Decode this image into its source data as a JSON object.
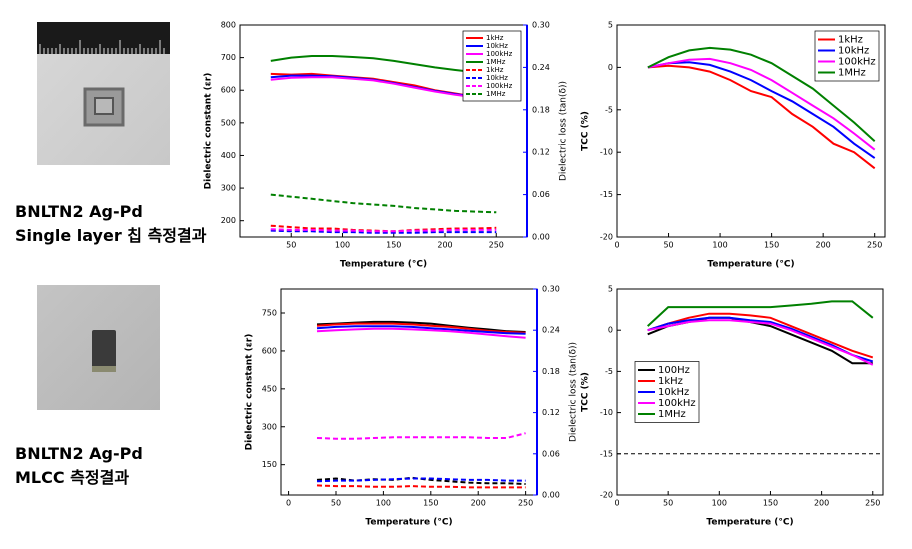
{
  "captions": [
    [
      "BNLTN2 Ag-Pd",
      "Single layer 칩 측정결과"
    ],
    [
      "BNLTN2 Ag-Pd",
      "MLCC 측정결과"
    ]
  ],
  "chart_data": [
    {
      "type": "line",
      "xlabel": "Temperature (°C)",
      "ylabel": "Dielectric constant (εr)",
      "y2label": "Dielectric loss (tan(δ))",
      "y2color": "#0000ff",
      "x": [
        30,
        50,
        70,
        90,
        110,
        130,
        150,
        170,
        190,
        210,
        230,
        250
      ],
      "xlim": [
        0,
        280
      ],
      "xticks": [
        50,
        100,
        150,
        200,
        250
      ],
      "ylim": [
        150,
        800
      ],
      "yticks": [
        200,
        300,
        400,
        500,
        600,
        700,
        800
      ],
      "y2lim": [
        0,
        0.3
      ],
      "y2ticks": [
        {
          "value": 0,
          "label": "0.00"
        },
        0.06,
        0.12,
        0.18,
        0.24,
        {
          "value": 0.3,
          "label": "0.30"
        }
      ],
      "legend": "upper right",
      "series": [
        {
          "name": "1kHz",
          "color": "#ff0000",
          "values": [
            650,
            648,
            650,
            645,
            640,
            635,
            625,
            615,
            600,
            590,
            580,
            575
          ]
        },
        {
          "name": "10kHz",
          "color": "#0000ff",
          "values": [
            640,
            645,
            645,
            643,
            638,
            632,
            622,
            610,
            598,
            588,
            580,
            578
          ]
        },
        {
          "name": "100kHz",
          "color": "#ff00ff",
          "values": [
            632,
            638,
            640,
            640,
            635,
            630,
            620,
            608,
            596,
            586,
            578,
            575
          ]
        },
        {
          "name": "1MHz",
          "color": "#008000",
          "values": [
            690,
            700,
            705,
            705,
            702,
            698,
            690,
            680,
            670,
            662,
            655,
            650
          ]
        },
        {
          "name": "1kHz",
          "color": "#ff0000",
          "axis": "y2",
          "dash": true,
          "values": [
            0.016,
            0.014,
            0.012,
            0.012,
            0.01,
            0.009,
            0.008,
            0.01,
            0.011,
            0.012,
            0.012,
            0.013
          ]
        },
        {
          "name": "10kHz",
          "color": "#0000ff",
          "axis": "y2",
          "dash": true,
          "values": [
            0.009,
            0.008,
            0.008,
            0.007,
            0.007,
            0.006,
            0.006,
            0.006,
            0.007,
            0.007,
            0.007,
            0.007
          ]
        },
        {
          "name": "100kHz",
          "color": "#ff00ff",
          "axis": "y2",
          "dash": true,
          "values": [
            0.011,
            0.01,
            0.01,
            0.009,
            0.009,
            0.008,
            0.008,
            0.009,
            0.009,
            0.01,
            0.01,
            0.01
          ]
        },
        {
          "name": "1MHz",
          "color": "#008000",
          "axis": "y2",
          "dash": true,
          "values": [
            0.06,
            0.057,
            0.054,
            0.051,
            0.048,
            0.046,
            0.044,
            0.041,
            0.039,
            0.037,
            0.036,
            0.035
          ]
        }
      ]
    },
    {
      "type": "line",
      "xlabel": "Temperature (°C)",
      "ylabel": "TCC (%)",
      "x": [
        30,
        50,
        70,
        90,
        110,
        130,
        150,
        170,
        190,
        210,
        230,
        250
      ],
      "xlim": [
        0,
        260
      ],
      "xticks": [
        0,
        50,
        100,
        150,
        200,
        250
      ],
      "ylim": [
        -20,
        5
      ],
      "yticks": [
        -20,
        -15,
        -10,
        -5,
        0,
        5
      ],
      "legend": "upper right",
      "series": [
        {
          "name": "1kHz",
          "color": "#ff0000",
          "values": [
            0,
            0.2,
            0,
            -0.5,
            -1.5,
            -2.8,
            -3.5,
            -5.5,
            -7,
            -9,
            -10,
            -11.9
          ]
        },
        {
          "name": "10kHz",
          "color": "#0000ff",
          "values": [
            0,
            0.5,
            0.6,
            0.3,
            -0.5,
            -1.5,
            -2.8,
            -4,
            -5.5,
            -7,
            -9,
            -10.7
          ]
        },
        {
          "name": "100kHz",
          "color": "#ff00ff",
          "values": [
            0,
            0.5,
            0.9,
            1,
            0.5,
            -0.3,
            -1.5,
            -3,
            -4.5,
            -6,
            -7.8,
            -9.7
          ]
        },
        {
          "name": "1MHz",
          "color": "#008000",
          "values": [
            0,
            1.2,
            2,
            2.3,
            2.1,
            1.5,
            0.5,
            -1,
            -2.5,
            -4.5,
            -6.5,
            -8.7
          ]
        }
      ]
    },
    {
      "type": "line",
      "xlabel": "Temperature (°C)",
      "ylabel": "Dielectric constant (εr)",
      "y2label": "Dielectric loss (tan(δ))",
      "y2color": "#0000ff",
      "x": [
        30,
        50,
        70,
        90,
        110,
        130,
        150,
        170,
        190,
        210,
        230,
        250
      ],
      "xlim": [
        -8,
        262
      ],
      "xticks": [
        0,
        50,
        100,
        150,
        200,
        250
      ],
      "ylim": [
        30,
        845
      ],
      "yticks": [
        150,
        300,
        450,
        600,
        750
      ],
      "y2lim": [
        0,
        0.3
      ],
      "y2ticks": [
        {
          "value": 0,
          "label": "0.00"
        },
        0.06,
        0.12,
        0.18,
        0.24,
        {
          "value": 0.3,
          "label": "0.30"
        }
      ],
      "series": [
        {
          "color": "#000000",
          "values": [
            705,
            708,
            712,
            715,
            715,
            712,
            708,
            700,
            692,
            685,
            678,
            675
          ]
        },
        {
          "color": "#ff0000",
          "values": [
            700,
            705,
            708,
            708,
            708,
            705,
            700,
            695,
            688,
            680,
            675,
            672
          ]
        },
        {
          "color": "#0000ff",
          "values": [
            690,
            695,
            698,
            698,
            698,
            695,
            690,
            685,
            680,
            675,
            670,
            668
          ]
        },
        {
          "color": "#ff00ff",
          "values": [
            678,
            682,
            685,
            688,
            688,
            685,
            682,
            678,
            672,
            665,
            658,
            652
          ]
        },
        {
          "color": "#000000",
          "axis": "y2",
          "dash": true,
          "values": [
            0.022,
            0.024,
            0.021,
            0.023,
            0.022,
            0.025,
            0.022,
            0.02,
            0.018,
            0.017,
            0.017,
            0.016
          ]
        },
        {
          "color": "#ff0000",
          "axis": "y2",
          "dash": true,
          "values": [
            0.014,
            0.013,
            0.013,
            0.012,
            0.012,
            0.013,
            0.012,
            0.012,
            0.011,
            0.011,
            0.011,
            0.011
          ]
        },
        {
          "color": "#0000ff",
          "axis": "y2",
          "dash": true,
          "values": [
            0.02,
            0.021,
            0.021,
            0.022,
            0.023,
            0.024,
            0.024,
            0.023,
            0.022,
            0.022,
            0.021,
            0.021
          ]
        },
        {
          "color": "#ff00ff",
          "axis": "y2",
          "dash": true,
          "values": [
            0.083,
            0.082,
            0.082,
            0.083,
            0.084,
            0.084,
            0.084,
            0.084,
            0.084,
            0.083,
            0.083,
            0.09
          ]
        }
      ]
    },
    {
      "type": "line",
      "xlabel": "Temperature (°C)",
      "ylabel": "TCC (%)",
      "x": [
        30,
        50,
        70,
        90,
        110,
        130,
        150,
        170,
        190,
        210,
        230,
        250
      ],
      "xlim": [
        0,
        260
      ],
      "xticks": [
        0,
        50,
        100,
        150,
        200,
        250
      ],
      "ylim": [
        -20,
        5
      ],
      "yticks": [
        -20,
        -15,
        -10,
        -5,
        0,
        5
      ],
      "hline": -15,
      "legend": "center left",
      "series": [
        {
          "name": "100Hz",
          "color": "#000000",
          "values": [
            -0.5,
            0.5,
            1,
            1.5,
            1.5,
            1,
            0.5,
            -0.5,
            -1.5,
            -2.5,
            -4,
            -4
          ]
        },
        {
          "name": "1kHz",
          "color": "#ff0000",
          "values": [
            0,
            0.8,
            1.5,
            2,
            2,
            1.8,
            1.5,
            0.5,
            -0.5,
            -1.5,
            -2.5,
            -3.3
          ]
        },
        {
          "name": "10kHz",
          "color": "#0000ff",
          "values": [
            0,
            0.8,
            1.2,
            1.5,
            1.5,
            1.2,
            1,
            0.2,
            -0.8,
            -1.8,
            -3,
            -3.8
          ]
        },
        {
          "name": "100kHz",
          "color": "#ff00ff",
          "values": [
            0,
            0.5,
            1,
            1.2,
            1.2,
            1,
            0.8,
            0,
            -1,
            -2,
            -3,
            -4.2
          ]
        },
        {
          "name": "1MHz",
          "color": "#008000",
          "values": [
            0.5,
            2.8,
            2.8,
            2.8,
            2.8,
            2.8,
            2.8,
            3,
            3.2,
            3.5,
            3.5,
            1.5
          ]
        }
      ]
    }
  ]
}
